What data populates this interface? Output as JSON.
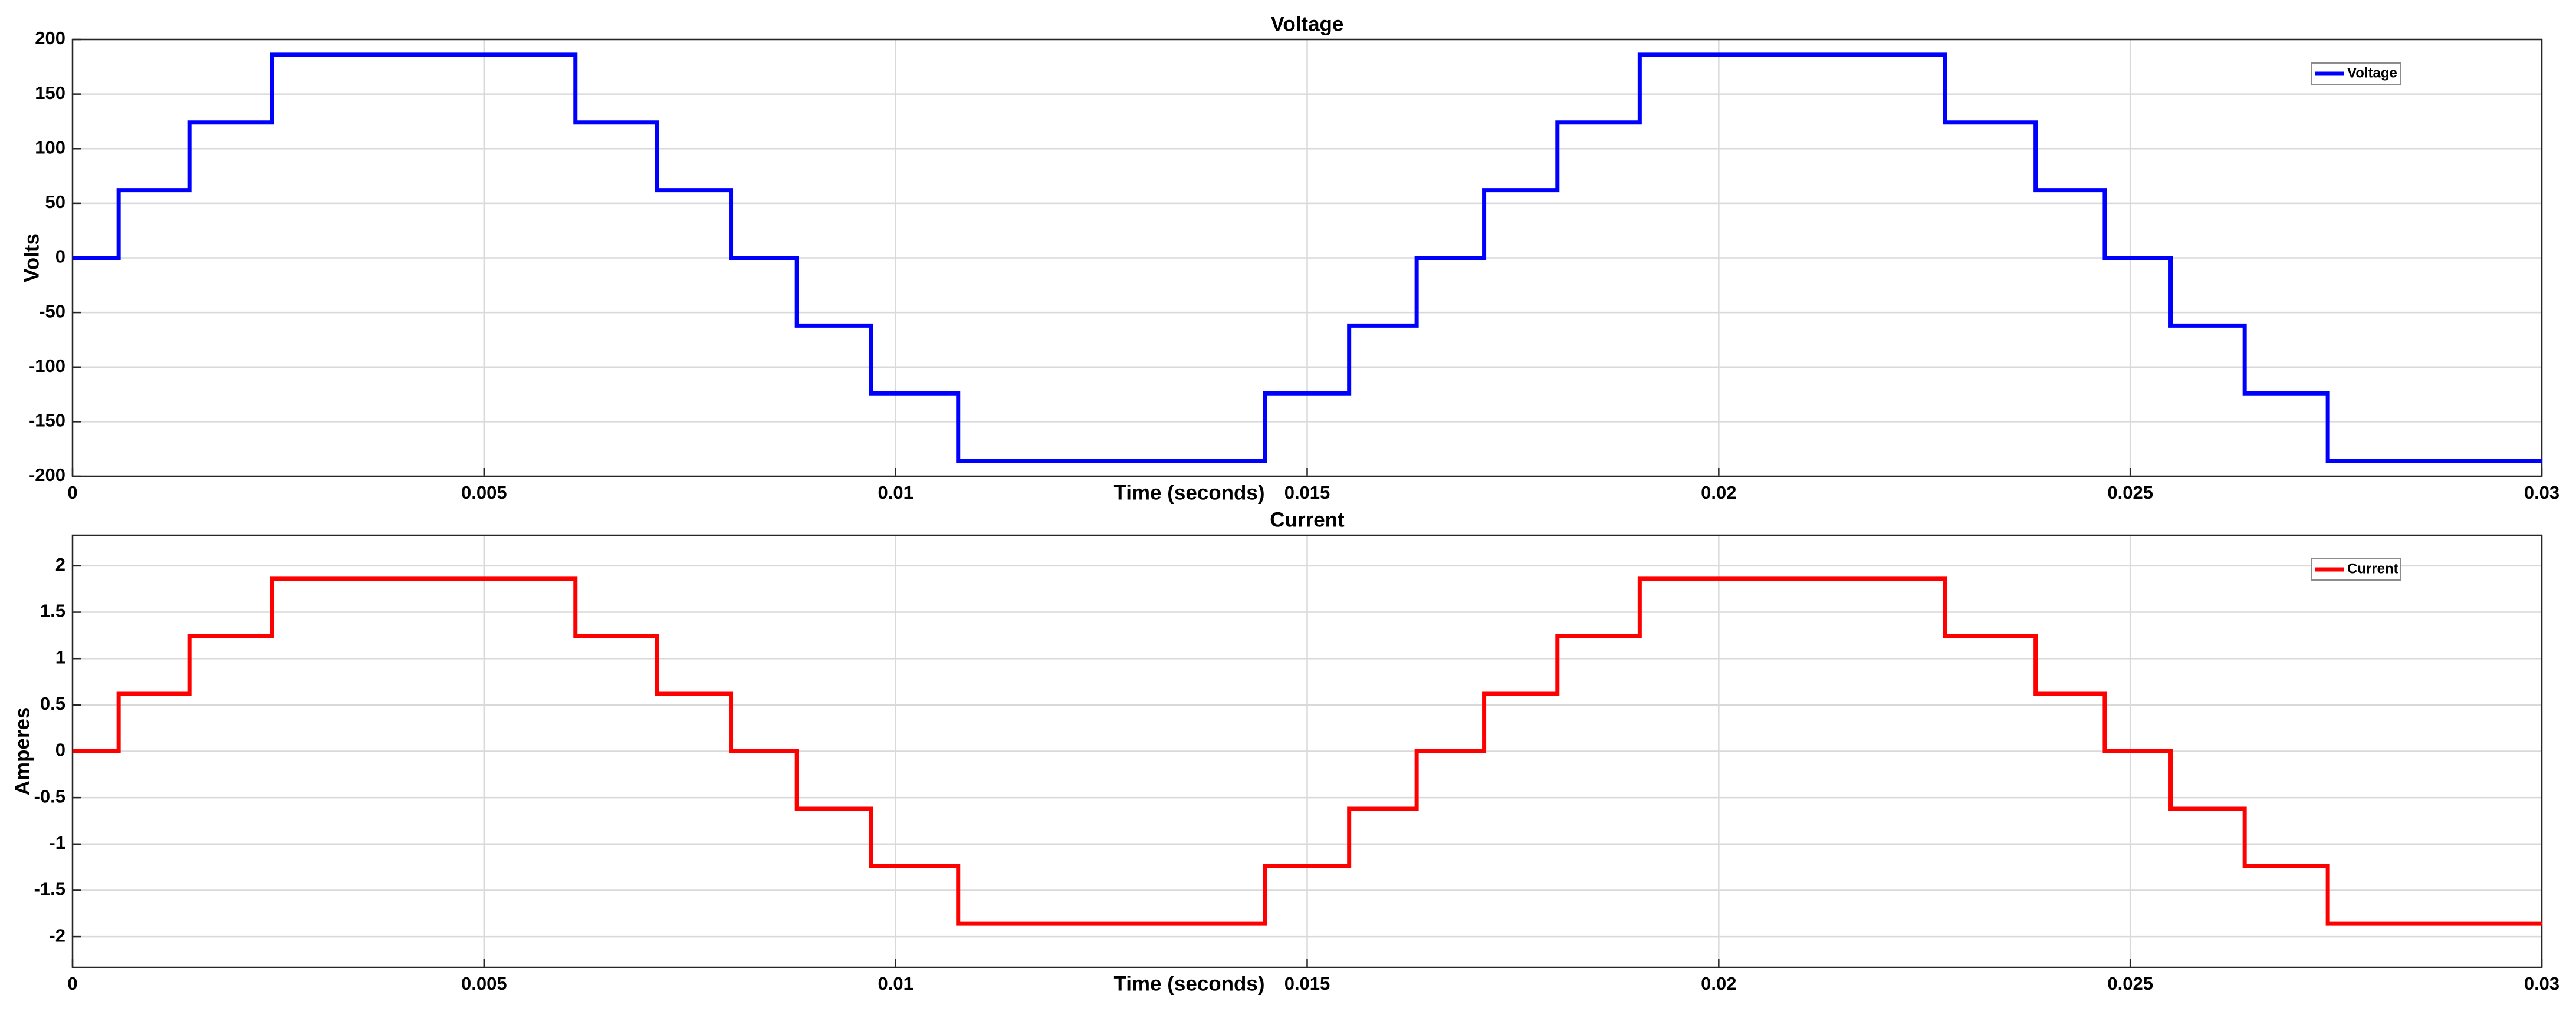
{
  "chart_data": [
    {
      "type": "line",
      "title": "Voltage",
      "xlabel": "Time (seconds)",
      "ylabel": "Volts",
      "x": [
        0,
        0.00056,
        0.00056,
        0.00142,
        0.00142,
        0.00242,
        0.00242,
        0.00611,
        0.00611,
        0.0071,
        0.0071,
        0.008,
        0.008,
        0.0088,
        0.0088,
        0.0097,
        0.0097,
        0.01076,
        0.01076,
        0.01449,
        0.01449,
        0.01551,
        0.01551,
        0.01633,
        0.01633,
        0.01715,
        0.01715,
        0.01804,
        0.01804,
        0.01904,
        0.01904,
        0.02275,
        0.02275,
        0.02385,
        0.02385,
        0.02469,
        0.02469,
        0.02549,
        0.02549,
        0.02639,
        0.02639,
        0.0274,
        0.0274,
        0.03
      ],
      "series": [
        {
          "name": "Voltage",
          "color": "#0000ff",
          "values": [
            0,
            0,
            62,
            62,
            124,
            124,
            186,
            186,
            124,
            124,
            62,
            62,
            0,
            0,
            -62,
            -62,
            -124,
            -124,
            -186,
            -186,
            -124,
            -124,
            -62,
            -62,
            0,
            0,
            62,
            62,
            124,
            124,
            186,
            186,
            124,
            124,
            62,
            62,
            0,
            0,
            -62,
            -62,
            -124,
            -124,
            -186,
            -186
          ]
        }
      ],
      "xlim": [
        0,
        0.03
      ],
      "xticks": [
        0,
        0.005,
        0.01,
        0.015,
        0.02,
        0.025,
        0.03
      ],
      "ylim": [
        -200,
        200
      ],
      "yticks": [
        -200,
        -150,
        -100,
        -50,
        0,
        50,
        100,
        150,
        200
      ],
      "grid": true,
      "legend": "upper right"
    },
    {
      "type": "line",
      "title": "Current",
      "xlabel": "Time (seconds)",
      "ylabel": "Amperes",
      "x": [
        0,
        0.00056,
        0.00056,
        0.00142,
        0.00142,
        0.00242,
        0.00242,
        0.00611,
        0.00611,
        0.0071,
        0.0071,
        0.008,
        0.008,
        0.0088,
        0.0088,
        0.0097,
        0.0097,
        0.01076,
        0.01076,
        0.01449,
        0.01449,
        0.01551,
        0.01551,
        0.01633,
        0.01633,
        0.01715,
        0.01715,
        0.01804,
        0.01804,
        0.01904,
        0.01904,
        0.02275,
        0.02275,
        0.02385,
        0.02385,
        0.02469,
        0.02469,
        0.02549,
        0.02549,
        0.02639,
        0.02639,
        0.0274,
        0.0274,
        0.03
      ],
      "series": [
        {
          "name": "Current",
          "color": "#ff0000",
          "values": [
            0,
            0,
            0.62,
            0.62,
            1.24,
            1.24,
            1.86,
            1.86,
            1.24,
            1.24,
            0.62,
            0.62,
            0,
            0,
            -0.62,
            -0.62,
            -1.24,
            -1.24,
            -1.86,
            -1.86,
            -1.24,
            -1.24,
            -0.62,
            -0.62,
            0,
            0,
            0.62,
            0.62,
            1.24,
            1.24,
            1.86,
            1.86,
            1.24,
            1.24,
            0.62,
            0.62,
            0,
            0,
            -0.62,
            -0.62,
            -1.24,
            -1.24,
            -1.86,
            -1.86
          ]
        }
      ],
      "xlim": [
        0,
        0.03
      ],
      "xticks": [
        0,
        0.005,
        0.01,
        0.015,
        0.02,
        0.025,
        0.03
      ],
      "ylim": [
        -2.33,
        2.33
      ],
      "yticks": [
        -2,
        -1.5,
        -1,
        -0.5,
        0,
        0.5,
        1,
        1.5,
        2
      ],
      "grid": true,
      "legend": "upper right"
    }
  ]
}
